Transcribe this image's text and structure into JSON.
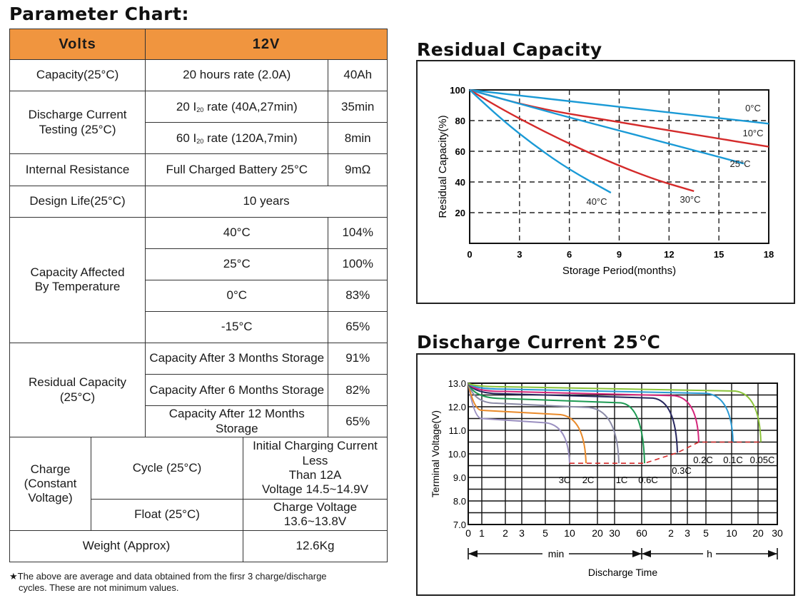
{
  "param_title": "Parameter Chart:",
  "table": {
    "volts_label": "Volts",
    "volts_value": "12V",
    "capacity_label": "Capacity(25°C)",
    "capacity_rate": "20 hours rate (2.0A)",
    "capacity_value": "40Ah",
    "discharge_label_1": "Discharge Current",
    "discharge_label_2": "Testing (25°C)",
    "dis_row1_a": "20 ",
    "dis_row1_sub": "20",
    "dis_row1_b": " rate  (40A,27min)",
    "dis_row1_value": "35min",
    "dis_row2_a": "60 ",
    "dis_row2_sub": "20",
    "dis_row2_b": " rate (120A,7min)",
    "dis_row2_value": "8min",
    "ir_label": "Internal Resistance",
    "ir_condition": "Full Charged Battery 25°C",
    "ir_value": "9mΩ",
    "design_label": "Design Life(25°C)",
    "design_value": "10 years",
    "temp_label_1": "Capacity Affected",
    "temp_label_2": "By Temperature",
    "temp_rows": [
      {
        "temp": "40°C",
        "value": "104%"
      },
      {
        "temp": "25°C",
        "value": "100%"
      },
      {
        "temp": "0°C",
        "value": "83%"
      },
      {
        "temp": "-15°C",
        "value": "65%"
      }
    ],
    "residual_label_1": "Residual Capacity",
    "residual_label_2": "(25°C)",
    "residual_rows": [
      {
        "cond": "Capacity After 3 Months Storage",
        "value": "91%"
      },
      {
        "cond": "Capacity After 6 Months Storage",
        "value": "82%"
      },
      {
        "cond": "Capacity After 12 Months Storage",
        "value": "65%"
      }
    ],
    "charge_label_1": "Charge",
    "charge_label_2": "(Constant",
    "charge_label_3": "Voltage)",
    "cycle_label": "Cycle (25°C)",
    "cycle_1": "Initial Charging Current Less",
    "cycle_2": "Than 12A",
    "cycle_3": "Voltage 14.5~14.9V",
    "float_label": "Float (25°C)",
    "float_value": "Charge Voltage 13.6~13.8V",
    "weight_label": "Weight (Approx)",
    "weight_value": "12.6Kg"
  },
  "footnote_1": "★The above are average and data obtained from the firsr 3 charge/discharge",
  "footnote_2": "cycles. These are not minimum values.",
  "chart_data": [
    {
      "type": "line",
      "title": "Residual Capacity",
      "xlabel": "Storage Period(months)",
      "ylabel": "Residual Capacity(%)",
      "xlim": [
        0,
        18
      ],
      "ylim": [
        0,
        100
      ],
      "x_ticks": [
        "0",
        "3",
        "6",
        "9",
        "12",
        "15",
        "18"
      ],
      "y_ticks": [
        "20",
        "40",
        "60",
        "80",
        "100"
      ],
      "grid": true,
      "series": [
        {
          "name": "0°C",
          "color": "#1a9ad6",
          "points": [
            [
              0,
              100
            ],
            [
              18,
              78
            ]
          ]
        },
        {
          "name": "10°C",
          "color": "#d42a2a",
          "points": [
            [
              0,
              100
            ],
            [
              4,
              88
            ],
            [
              9,
              79
            ],
            [
              14,
              70
            ],
            [
              18,
              63
            ]
          ]
        },
        {
          "name": "25°C",
          "color": "#1a9ad6",
          "points": [
            [
              0,
              100
            ],
            [
              3,
              91
            ],
            [
              6,
              82
            ],
            [
              12,
              65
            ],
            [
              16.5,
              52
            ]
          ]
        },
        {
          "name": "30°C",
          "color": "#d42a2a",
          "points": [
            [
              0,
              100
            ],
            [
              2,
              87
            ],
            [
              5,
              70
            ],
            [
              8,
              55
            ],
            [
              11,
              42
            ],
            [
              13.5,
              34
            ]
          ]
        },
        {
          "name": "40°C",
          "color": "#1a9ad6",
          "points": [
            [
              0,
              100
            ],
            [
              2,
              80
            ],
            [
              4,
              63
            ],
            [
              6,
              48
            ],
            [
              8.5,
              33
            ]
          ]
        }
      ]
    },
    {
      "type": "line",
      "title": "Discharge Current 25℃",
      "xlabel": "Discharge Time",
      "ylabel": "Terminal Voltage(V)",
      "ylim": [
        7.0,
        13.0
      ],
      "x_ticks": [
        "0",
        "1",
        "2",
        "3",
        "5",
        "10",
        "20",
        "30",
        "60",
        "2",
        "3",
        "5",
        "10",
        "20",
        "30"
      ],
      "y_ticks": [
        "7.0",
        "8.0",
        "9.0",
        "10.0",
        "11.0",
        "12.0",
        "13.0"
      ],
      "x_segment_labels": [
        "min",
        "h"
      ],
      "grid": true,
      "series": [
        {
          "name": "3C",
          "color": "#9a8fc0",
          "end_voltage": 9.6
        },
        {
          "name": "2C",
          "color": "#e98a2a",
          "end_voltage": 9.6
        },
        {
          "name": "1C",
          "color": "#8c8ca8",
          "end_voltage": 9.6
        },
        {
          "name": "0.6C",
          "color": "#1d9a52",
          "end_voltage": 9.6
        },
        {
          "name": "0.3C",
          "color": "#26265e",
          "end_voltage": 10.05
        },
        {
          "name": "0.2C",
          "color": "#d4267a",
          "end_voltage": 10.5
        },
        {
          "name": "0.1C",
          "color": "#2a9ad4",
          "end_voltage": 10.5
        },
        {
          "name": "0.05C",
          "color": "#8cc43a",
          "end_voltage": 10.5
        }
      ]
    }
  ]
}
